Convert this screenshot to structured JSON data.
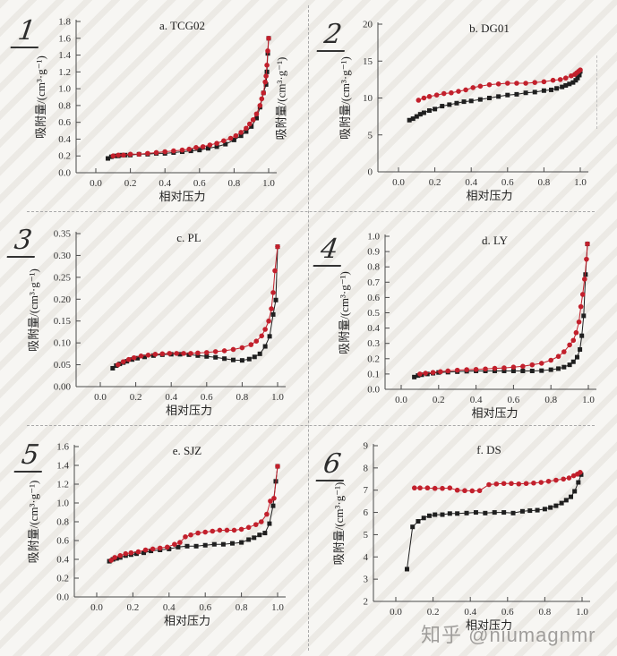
{
  "watermark": {
    "text": "知乎 @niumagnmr"
  },
  "annotations": {
    "panel_numbers": [
      "1",
      "2",
      "3",
      "4",
      "5",
      "6"
    ],
    "stray_y_label": "吸附量/(cm³·g⁻¹)"
  },
  "chart_data": [
    {
      "type": "line",
      "title": "a. TCG02",
      "xlabel": "相对压力",
      "ylabel": "吸附量/(cm³·g⁻¹)",
      "xlim": [
        0,
        1.0
      ],
      "ylim": [
        0,
        1.8
      ],
      "xticks": [
        0.0,
        0.2,
        0.4,
        0.6,
        0.8,
        1.0
      ],
      "yticks": [
        0.0,
        0.2,
        0.4,
        0.6,
        0.8,
        1.0,
        1.2,
        1.4,
        1.6,
        1.8
      ],
      "y_decimals": 1,
      "grid": false,
      "legend": "none",
      "series": [
        {
          "name": "adsorption (black squares)",
          "marker": "square",
          "color": "#1f1f1f",
          "x": [
            0.07,
            0.09,
            0.11,
            0.13,
            0.15,
            0.17,
            0.2,
            0.25,
            0.3,
            0.35,
            0.4,
            0.45,
            0.5,
            0.55,
            0.6,
            0.65,
            0.7,
            0.75,
            0.8,
            0.84,
            0.87,
            0.9,
            0.93,
            0.95,
            0.97,
            0.985,
            0.99,
            0.995,
            1.0
          ],
          "y": [
            0.17,
            0.19,
            0.2,
            0.2,
            0.21,
            0.21,
            0.21,
            0.22,
            0.22,
            0.23,
            0.23,
            0.24,
            0.25,
            0.26,
            0.27,
            0.29,
            0.31,
            0.34,
            0.39,
            0.44,
            0.49,
            0.55,
            0.65,
            0.78,
            0.95,
            1.05,
            1.2,
            1.42,
            1.6
          ]
        },
        {
          "name": "desorption (red circles)",
          "marker": "circle",
          "color": "#c2202c",
          "x": [
            0.1,
            0.13,
            0.16,
            0.2,
            0.25,
            0.3,
            0.35,
            0.4,
            0.45,
            0.5,
            0.54,
            0.58,
            0.62,
            0.66,
            0.7,
            0.74,
            0.78,
            0.81,
            0.84,
            0.87,
            0.89,
            0.91,
            0.93,
            0.95,
            0.96,
            0.97,
            0.98,
            0.985,
            0.99,
            0.995,
            1.0
          ],
          "y": [
            0.2,
            0.21,
            0.21,
            0.22,
            0.22,
            0.23,
            0.24,
            0.25,
            0.26,
            0.27,
            0.28,
            0.3,
            0.31,
            0.33,
            0.35,
            0.38,
            0.41,
            0.44,
            0.48,
            0.53,
            0.58,
            0.63,
            0.7,
            0.8,
            0.88,
            0.95,
            1.08,
            1.15,
            1.28,
            1.45,
            1.6
          ]
        }
      ]
    },
    {
      "type": "line",
      "title": "b. DG01",
      "xlabel": "相对压力",
      "ylabel": "吸附量/(cm³·g⁻¹)",
      "xlim": [
        0,
        1.0
      ],
      "ylim": [
        0,
        20
      ],
      "xticks": [
        0.0,
        0.2,
        0.4,
        0.6,
        0.8,
        1.0
      ],
      "yticks": [
        0,
        5,
        10,
        15,
        20
      ],
      "y_decimals": 0,
      "grid": false,
      "legend": "none",
      "series": [
        {
          "name": "adsorption (black squares)",
          "marker": "square",
          "color": "#1f1f1f",
          "x": [
            0.06,
            0.08,
            0.1,
            0.12,
            0.14,
            0.17,
            0.2,
            0.24,
            0.28,
            0.32,
            0.36,
            0.4,
            0.45,
            0.5,
            0.55,
            0.6,
            0.65,
            0.7,
            0.75,
            0.8,
            0.84,
            0.87,
            0.9,
            0.92,
            0.94,
            0.96,
            0.975,
            0.985,
            0.995,
            1.0
          ],
          "y": [
            7.0,
            7.2,
            7.5,
            7.8,
            8.0,
            8.3,
            8.5,
            8.9,
            9.1,
            9.3,
            9.5,
            9.6,
            9.8,
            10.0,
            10.2,
            10.4,
            10.5,
            10.7,
            10.8,
            11.0,
            11.1,
            11.3,
            11.5,
            11.7,
            11.9,
            12.1,
            12.4,
            12.7,
            13.1,
            13.6
          ]
        },
        {
          "name": "desorption (red circles)",
          "marker": "circle",
          "color": "#c2202c",
          "x": [
            0.11,
            0.14,
            0.17,
            0.21,
            0.25,
            0.29,
            0.33,
            0.37,
            0.41,
            0.45,
            0.5,
            0.55,
            0.6,
            0.65,
            0.7,
            0.75,
            0.8,
            0.85,
            0.89,
            0.92,
            0.95,
            0.97,
            0.98,
            0.99,
            1.0
          ],
          "y": [
            9.7,
            10.0,
            10.2,
            10.4,
            10.6,
            10.7,
            10.9,
            11.1,
            11.4,
            11.6,
            11.8,
            11.9,
            12.0,
            12.0,
            12.0,
            12.1,
            12.2,
            12.4,
            12.5,
            12.7,
            13.0,
            13.2,
            13.4,
            13.6,
            13.8
          ]
        }
      ]
    },
    {
      "type": "line",
      "title": "c. PL",
      "xlabel": "相对压力",
      "ylabel": "吸附量/(cm³·g⁻¹)",
      "xlim": [
        0,
        1.0
      ],
      "ylim": [
        0,
        0.35
      ],
      "xticks": [
        0.0,
        0.2,
        0.4,
        0.6,
        0.8,
        1.0
      ],
      "yticks": [
        0.0,
        0.05,
        0.1,
        0.15,
        0.2,
        0.25,
        0.3,
        0.35
      ],
      "y_decimals": 2,
      "grid": false,
      "legend": "none",
      "series": [
        {
          "name": "adsorption (black squares)",
          "marker": "square",
          "color": "#1f1f1f",
          "x": [
            0.07,
            0.09,
            0.11,
            0.13,
            0.15,
            0.18,
            0.21,
            0.25,
            0.3,
            0.35,
            0.4,
            0.45,
            0.5,
            0.55,
            0.6,
            0.65,
            0.7,
            0.75,
            0.8,
            0.84,
            0.87,
            0.9,
            0.93,
            0.955,
            0.975,
            0.99,
            1.0
          ],
          "y": [
            0.042,
            0.048,
            0.052,
            0.055,
            0.058,
            0.062,
            0.065,
            0.068,
            0.071,
            0.073,
            0.074,
            0.074,
            0.073,
            0.071,
            0.069,
            0.067,
            0.064,
            0.061,
            0.06,
            0.063,
            0.068,
            0.075,
            0.092,
            0.115,
            0.165,
            0.198,
            0.32
          ]
        },
        {
          "name": "desorption (red circles)",
          "marker": "circle",
          "color": "#c2202c",
          "x": [
            0.1,
            0.13,
            0.16,
            0.19,
            0.23,
            0.27,
            0.31,
            0.35,
            0.39,
            0.43,
            0.47,
            0.51,
            0.55,
            0.6,
            0.65,
            0.7,
            0.75,
            0.8,
            0.85,
            0.88,
            0.91,
            0.93,
            0.95,
            0.965,
            0.975,
            0.985,
            1.0
          ],
          "y": [
            0.05,
            0.057,
            0.062,
            0.066,
            0.07,
            0.072,
            0.074,
            0.075,
            0.076,
            0.076,
            0.076,
            0.076,
            0.077,
            0.078,
            0.08,
            0.082,
            0.085,
            0.089,
            0.096,
            0.104,
            0.116,
            0.131,
            0.15,
            0.178,
            0.215,
            0.265,
            0.32
          ]
        }
      ]
    },
    {
      "type": "line",
      "title": "d. LY",
      "xlabel": "相对压力",
      "ylabel": "吸附量/(cm³·g⁻¹)",
      "xlim": [
        0,
        1.0
      ],
      "ylim": [
        0,
        1.0
      ],
      "xticks": [
        0.0,
        0.2,
        0.4,
        0.6,
        0.8,
        1.0
      ],
      "yticks": [
        0.0,
        0.1,
        0.2,
        0.3,
        0.4,
        0.5,
        0.6,
        0.7,
        0.8,
        0.9,
        1.0
      ],
      "y_decimals": 1,
      "grid": false,
      "legend": "none",
      "series": [
        {
          "name": "adsorption (black squares)",
          "marker": "square",
          "color": "#1f1f1f",
          "x": [
            0.07,
            0.09,
            0.11,
            0.14,
            0.17,
            0.2,
            0.25,
            0.3,
            0.35,
            0.4,
            0.45,
            0.5,
            0.55,
            0.6,
            0.65,
            0.7,
            0.75,
            0.8,
            0.84,
            0.87,
            0.9,
            0.92,
            0.94,
            0.955,
            0.965,
            0.975,
            0.985,
            0.995
          ],
          "y": [
            0.08,
            0.09,
            0.095,
            0.1,
            0.105,
            0.11,
            0.112,
            0.115,
            0.118,
            0.12,
            0.12,
            0.12,
            0.12,
            0.12,
            0.12,
            0.12,
            0.122,
            0.128,
            0.135,
            0.145,
            0.16,
            0.18,
            0.21,
            0.26,
            0.35,
            0.48,
            0.75,
            0.95
          ]
        },
        {
          "name": "desorption (red circles)",
          "marker": "circle",
          "color": "#c2202c",
          "x": [
            0.1,
            0.13,
            0.17,
            0.21,
            0.25,
            0.3,
            0.35,
            0.4,
            0.45,
            0.5,
            0.55,
            0.6,
            0.65,
            0.7,
            0.75,
            0.8,
            0.84,
            0.87,
            0.9,
            0.92,
            0.935,
            0.95,
            0.96,
            0.97,
            0.98,
            0.99,
            0.995
          ],
          "y": [
            0.1,
            0.105,
            0.11,
            0.115,
            0.12,
            0.125,
            0.128,
            0.13,
            0.133,
            0.137,
            0.14,
            0.145,
            0.15,
            0.16,
            0.17,
            0.19,
            0.215,
            0.245,
            0.29,
            0.32,
            0.37,
            0.44,
            0.54,
            0.62,
            0.72,
            0.85,
            0.95
          ]
        }
      ]
    },
    {
      "type": "line",
      "title": "e. SJZ",
      "xlabel": "相对压力",
      "ylabel": "吸附量/(cm³·g⁻¹)",
      "xlim": [
        0,
        1.0
      ],
      "ylim": [
        0,
        1.6
      ],
      "xticks": [
        0.0,
        0.2,
        0.4,
        0.6,
        0.8,
        1.0
      ],
      "yticks": [
        0.0,
        0.2,
        0.4,
        0.6,
        0.8,
        1.0,
        1.2,
        1.4,
        1.6
      ],
      "y_decimals": 1,
      "grid": false,
      "legend": "none",
      "series": [
        {
          "name": "adsorption (black squares)",
          "marker": "square",
          "color": "#1f1f1f",
          "x": [
            0.07,
            0.09,
            0.11,
            0.13,
            0.16,
            0.19,
            0.22,
            0.26,
            0.3,
            0.35,
            0.4,
            0.45,
            0.5,
            0.55,
            0.6,
            0.65,
            0.7,
            0.75,
            0.8,
            0.84,
            0.87,
            0.9,
            0.93,
            0.955,
            0.975,
            0.99,
            1.0
          ],
          "y": [
            0.38,
            0.4,
            0.41,
            0.42,
            0.44,
            0.45,
            0.46,
            0.47,
            0.49,
            0.5,
            0.51,
            0.53,
            0.54,
            0.54,
            0.55,
            0.56,
            0.56,
            0.57,
            0.58,
            0.61,
            0.63,
            0.66,
            0.68,
            0.78,
            0.97,
            1.23,
            1.39
          ]
        },
        {
          "name": "desorption (red circles)",
          "marker": "circle",
          "color": "#c2202c",
          "x": [
            0.08,
            0.1,
            0.13,
            0.16,
            0.19,
            0.23,
            0.27,
            0.31,
            0.35,
            0.39,
            0.43,
            0.46,
            0.49,
            0.52,
            0.56,
            0.6,
            0.64,
            0.68,
            0.72,
            0.76,
            0.8,
            0.84,
            0.88,
            0.91,
            0.94,
            0.96,
            0.98,
            1.0
          ],
          "y": [
            0.39,
            0.42,
            0.44,
            0.46,
            0.47,
            0.48,
            0.5,
            0.51,
            0.52,
            0.53,
            0.56,
            0.58,
            0.64,
            0.66,
            0.68,
            0.69,
            0.7,
            0.71,
            0.71,
            0.71,
            0.72,
            0.74,
            0.77,
            0.8,
            0.88,
            1.02,
            1.05,
            1.39
          ]
        }
      ]
    },
    {
      "type": "line",
      "title": "f. DS",
      "xlabel": "相对压力",
      "ylabel": "吸附量/(cm³·g⁻¹)",
      "xlim": [
        0,
        1.0
      ],
      "ylim": [
        2,
        9
      ],
      "xticks": [
        0.0,
        0.2,
        0.4,
        0.6,
        0.8,
        1.0
      ],
      "yticks": [
        2,
        3,
        4,
        5,
        6,
        7,
        8,
        9
      ],
      "y_decimals": 0,
      "grid": false,
      "legend": "none",
      "series": [
        {
          "name": "adsorption (black squares)",
          "marker": "square",
          "color": "#1f1f1f",
          "x": [
            0.06,
            0.09,
            0.12,
            0.15,
            0.18,
            0.21,
            0.25,
            0.29,
            0.33,
            0.38,
            0.43,
            0.48,
            0.53,
            0.58,
            0.63,
            0.68,
            0.72,
            0.76,
            0.8,
            0.83,
            0.86,
            0.89,
            0.915,
            0.94,
            0.96,
            0.98,
            0.995
          ],
          "y": [
            3.45,
            5.35,
            5.6,
            5.75,
            5.85,
            5.9,
            5.9,
            5.95,
            5.95,
            5.97,
            6.0,
            5.97,
            6.0,
            6.0,
            5.97,
            6.05,
            6.08,
            6.1,
            6.15,
            6.22,
            6.3,
            6.42,
            6.55,
            6.7,
            6.95,
            7.35,
            7.7
          ]
        },
        {
          "name": "desorption (red circles)",
          "marker": "circle",
          "color": "#c2202c",
          "x": [
            0.1,
            0.13,
            0.17,
            0.21,
            0.25,
            0.29,
            0.33,
            0.37,
            0.41,
            0.45,
            0.5,
            0.54,
            0.58,
            0.62,
            0.66,
            0.7,
            0.74,
            0.78,
            0.82,
            0.86,
            0.9,
            0.93,
            0.955,
            0.975,
            0.99
          ],
          "y": [
            7.1,
            7.1,
            7.1,
            7.08,
            7.08,
            7.1,
            7.0,
            6.98,
            6.97,
            6.98,
            7.25,
            7.28,
            7.3,
            7.3,
            7.28,
            7.3,
            7.32,
            7.35,
            7.4,
            7.45,
            7.5,
            7.55,
            7.65,
            7.72,
            7.8
          ]
        }
      ]
    }
  ]
}
